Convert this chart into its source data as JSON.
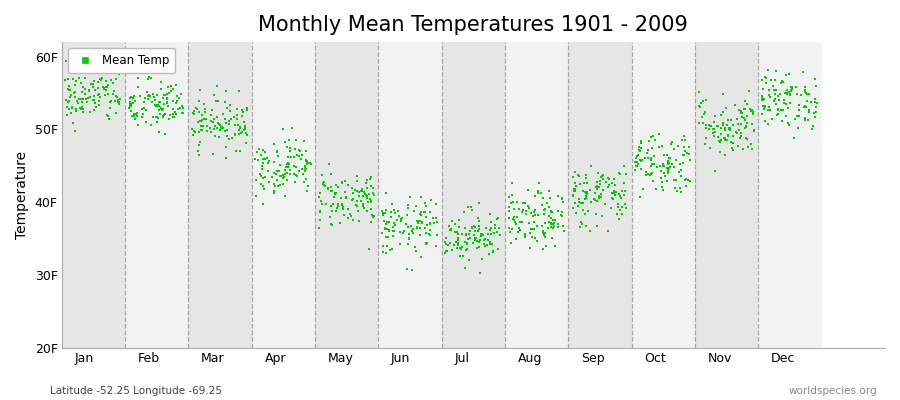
{
  "title": "Monthly Mean Temperatures 1901 - 2009",
  "ylabel": "Temperature",
  "xlabel_months": [
    "Jan",
    "Feb",
    "Mar",
    "Apr",
    "May",
    "Jun",
    "Jul",
    "Aug",
    "Sep",
    "Oct",
    "Nov",
    "Dec"
  ],
  "subtitle": "Latitude -52.25 Longitude -69.25",
  "watermark": "worldspecies.org",
  "legend_label": "Mean Temp",
  "dot_color": "#00cc00",
  "dot_size": 3,
  "ylim": [
    20,
    62
  ],
  "yticks": [
    20,
    30,
    40,
    50,
    60
  ],
  "ytick_labels": [
    "20F",
    "30F",
    "40F",
    "50F",
    "60F"
  ],
  "bg_color": "#ffffff",
  "band_colors": [
    "#e6e6e6",
    "#f2f2f2"
  ],
  "title_fontsize": 15,
  "axis_label_fontsize": 10,
  "tick_fontsize": 9,
  "n_years": 109,
  "month_means_F": [
    54.5,
    53.2,
    51.0,
    45.0,
    40.5,
    36.5,
    35.5,
    37.5,
    41.0,
    45.5,
    50.5,
    54.0
  ],
  "month_stds_F": [
    1.8,
    1.8,
    1.8,
    2.0,
    2.0,
    2.0,
    1.8,
    2.0,
    2.2,
    2.2,
    2.2,
    2.0
  ],
  "seed": 42,
  "dashed_color": "#888888",
  "dashed_lw": 0.9
}
